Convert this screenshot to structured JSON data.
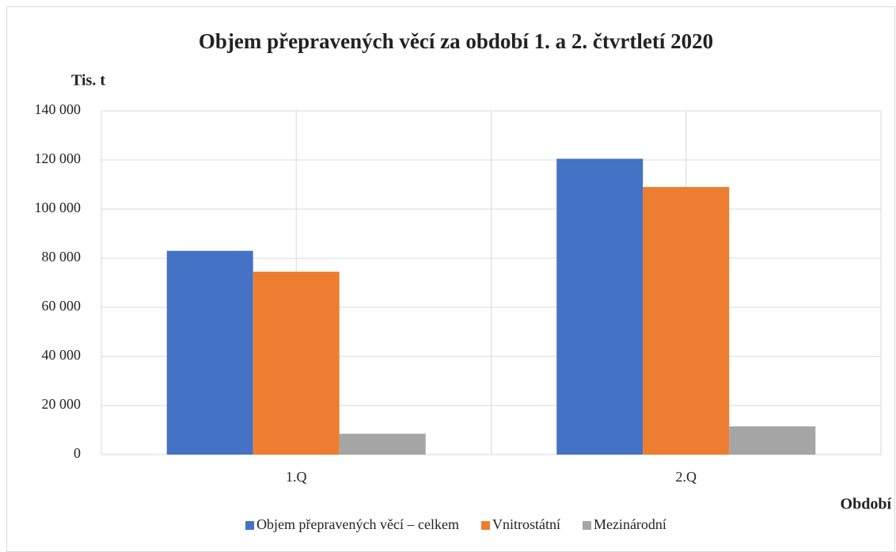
{
  "chart_data": {
    "type": "bar",
    "title": "Objem přepravených věcí za období 1. a 2. čtvrtletí 2020",
    "y_label": "Tis. t",
    "x_label": "Období",
    "categories": [
      "1.Q",
      "2.Q"
    ],
    "series": [
      {
        "name": "Objem přepravených věcí – celkem",
        "color": "#4472c4",
        "values": [
          83000,
          120500
        ]
      },
      {
        "name": "Vnitrostátní",
        "color": "#ed7d31",
        "values": [
          74500,
          109000
        ]
      },
      {
        "name": "Mezinárodní",
        "color": "#a5a5a5",
        "values": [
          8500,
          11500
        ]
      }
    ],
    "ylim": [
      0,
      140000
    ],
    "yticks": [
      0,
      {
        "value": 20000,
        "label": "20 000"
      },
      {
        "value": 40000,
        "label": "40 000"
      },
      {
        "value": 60000,
        "label": "60 000"
      },
      {
        "value": 80000,
        "label": "80 000"
      },
      {
        "value": 100000,
        "label": "100 000"
      },
      {
        "value": 120000,
        "label": "120 000"
      },
      {
        "value": 140000,
        "label": "140 000"
      }
    ],
    "grid": true,
    "legend": "bottom"
  }
}
